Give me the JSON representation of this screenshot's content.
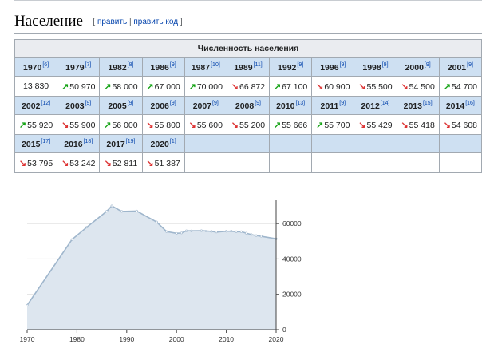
{
  "section": {
    "title": "Население",
    "edit_label": "править",
    "edit_source_label": "править код",
    "open_bracket": "[",
    "separator": "|",
    "close_bracket": "]"
  },
  "table": {
    "caption": "Численность населения",
    "rows": [
      [
        {
          "year": "1970",
          "ref": "[6]",
          "value": "13 830",
          "trend": "none"
        },
        {
          "year": "1979",
          "ref": "[7]",
          "value": "50 970",
          "trend": "up"
        },
        {
          "year": "1982",
          "ref": "[8]",
          "value": "58 000",
          "trend": "up"
        },
        {
          "year": "1986",
          "ref": "[9]",
          "value": "67 000",
          "trend": "up"
        },
        {
          "year": "1987",
          "ref": "[10]",
          "value": "70 000",
          "trend": "up"
        },
        {
          "year": "1989",
          "ref": "[11]",
          "value": "66 872",
          "trend": "down"
        },
        {
          "year": "1992",
          "ref": "[9]",
          "value": "67 100",
          "trend": "up"
        },
        {
          "year": "1996",
          "ref": "[9]",
          "value": "60 900",
          "trend": "down"
        },
        {
          "year": "1998",
          "ref": "[9]",
          "value": "55 500",
          "trend": "down"
        },
        {
          "year": "2000",
          "ref": "[9]",
          "value": "54 500",
          "trend": "down"
        },
        {
          "year": "2001",
          "ref": "[9]",
          "value": "54 700",
          "trend": "up"
        }
      ],
      [
        {
          "year": "2002",
          "ref": "[12]",
          "value": "55 920",
          "trend": "up"
        },
        {
          "year": "2003",
          "ref": "[9]",
          "value": "55 900",
          "trend": "down"
        },
        {
          "year": "2005",
          "ref": "[9]",
          "value": "56 000",
          "trend": "up"
        },
        {
          "year": "2006",
          "ref": "[9]",
          "value": "55 800",
          "trend": "down"
        },
        {
          "year": "2007",
          "ref": "[9]",
          "value": "55 600",
          "trend": "down"
        },
        {
          "year": "2008",
          "ref": "[9]",
          "value": "55 200",
          "trend": "down"
        },
        {
          "year": "2010",
          "ref": "[13]",
          "value": "55 666",
          "trend": "up"
        },
        {
          "year": "2011",
          "ref": "[9]",
          "value": "55 700",
          "trend": "up"
        },
        {
          "year": "2012",
          "ref": "[14]",
          "value": "55 429",
          "trend": "down"
        },
        {
          "year": "2013",
          "ref": "[15]",
          "value": "55 418",
          "trend": "down"
        },
        {
          "year": "2014",
          "ref": "[16]",
          "value": "54 608",
          "trend": "down"
        }
      ],
      [
        {
          "year": "2015",
          "ref": "[17]",
          "value": "53 795",
          "trend": "down"
        },
        {
          "year": "2016",
          "ref": "[18]",
          "value": "53 242",
          "trend": "down"
        },
        {
          "year": "2017",
          "ref": "[19]",
          "value": "52 811",
          "trend": "down"
        },
        {
          "year": "2020",
          "ref": "[1]",
          "value": "51 387",
          "trend": "down"
        },
        null,
        null,
        null,
        null,
        null,
        null,
        null
      ]
    ],
    "arrows": {
      "up": "↗",
      "down": "↘"
    },
    "colors": {
      "up": "#14a314",
      "down": "#dd3333",
      "header_bg": "#cee0f2",
      "caption_bg": "#eaecf0",
      "border": "#a2a9b1"
    }
  },
  "chart_data": {
    "type": "area",
    "x": [
      1970,
      1979,
      1982,
      1986,
      1987,
      1989,
      1992,
      1996,
      1998,
      2000,
      2001,
      2002,
      2003,
      2005,
      2006,
      2007,
      2008,
      2010,
      2011,
      2012,
      2013,
      2014,
      2015,
      2016,
      2017,
      2020
    ],
    "y": [
      13830,
      50970,
      58000,
      67000,
      70000,
      66872,
      67100,
      60900,
      55500,
      54500,
      54700,
      55920,
      55900,
      56000,
      55800,
      55600,
      55200,
      55666,
      55700,
      55429,
      55418,
      54608,
      53795,
      53242,
      52811,
      51387
    ],
    "xlim": [
      1970,
      2020
    ],
    "ylim": [
      0,
      70000
    ],
    "x_ticks": [
      "1970",
      "1980",
      "1990",
      "2000",
      "2010",
      "2020"
    ],
    "y_ticks": [
      "0",
      "20000",
      "40000",
      "60000"
    ],
    "y_axis_side": "right",
    "grid": true,
    "fill_color": "#dde6ef",
    "line_color": "#9fb6cc",
    "grid_color": "#dddddd"
  }
}
